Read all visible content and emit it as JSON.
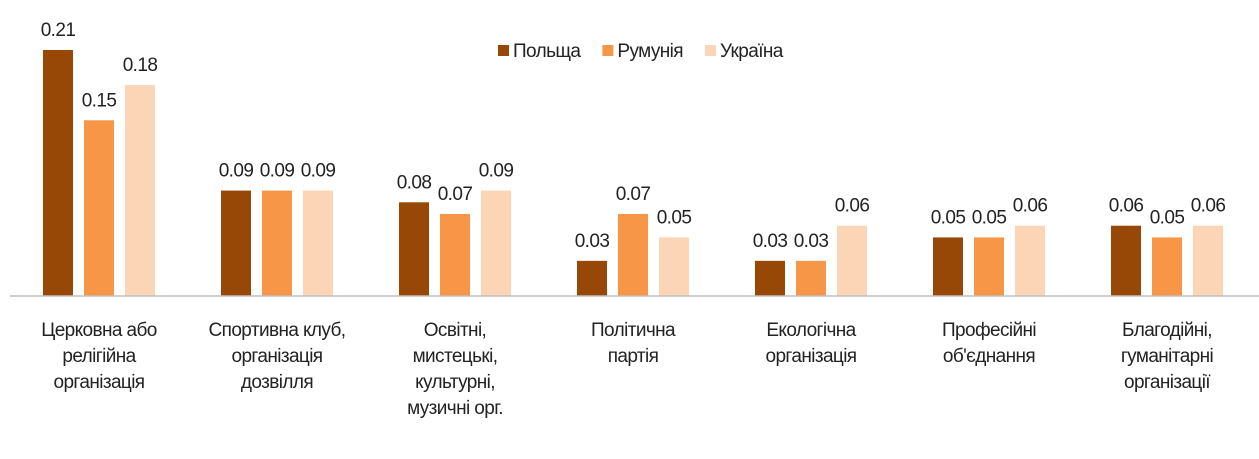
{
  "chart_data": {
    "type": "bar",
    "categories": [
      "Церковна або\nрелігійна\nорганізація",
      "Спортивна клуб,\nорганізація\nдозвілля",
      "Освітні,\nмистецькі,\nкультурні,\nмузичні орг.",
      "Політична\nпартія",
      "Екологічна\nорганізація",
      "Професійні\nоб'єднання",
      "Благодійні,\nгуманітарні\nорганізації"
    ],
    "series": [
      {
        "name": "Польща",
        "color": "#974706",
        "values": [
          0.21,
          0.09,
          0.08,
          0.03,
          0.03,
          0.05,
          0.06
        ]
      },
      {
        "name": "Румунія",
        "color": "#f79646",
        "values": [
          0.15,
          0.09,
          0.07,
          0.07,
          0.03,
          0.05,
          0.05
        ]
      },
      {
        "name": "Україна",
        "color": "#fbd5b5",
        "values": [
          0.18,
          0.09,
          0.09,
          0.05,
          0.06,
          0.06,
          0.06
        ]
      }
    ],
    "ylim": [
      0,
      0.21
    ],
    "legend": "top"
  }
}
